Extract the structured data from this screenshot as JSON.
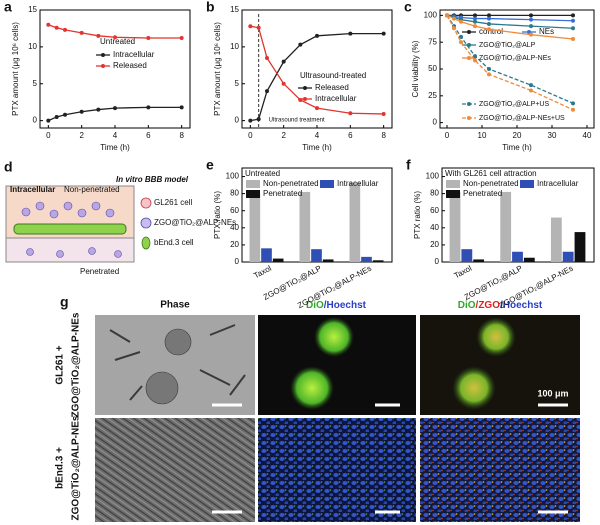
{
  "chart_data": [
    {
      "panel": "a",
      "type": "line",
      "title": "Untreated",
      "x_label": "Time (h)",
      "y_label": "PTX amount (μg 10⁶ cells)",
      "x": [
        0,
        0.5,
        1,
        2,
        3,
        4,
        6,
        8
      ],
      "xlim": [
        -0.5,
        8.5
      ],
      "xticks": [
        0,
        2,
        4,
        6,
        8
      ],
      "ylim": [
        -1,
        15
      ],
      "yticks": [
        0,
        5,
        10,
        15
      ],
      "series": [
        {
          "name": "Intracellular",
          "color": "#222222",
          "values": [
            0,
            0.5,
            0.8,
            1.2,
            1.5,
            1.7,
            1.8,
            1.8
          ]
        },
        {
          "name": "Released",
          "color": "#e3342f",
          "values": [
            13,
            12.6,
            12.3,
            11.9,
            11.5,
            11.3,
            11.2,
            11.2
          ]
        }
      ]
    },
    {
      "panel": "b",
      "type": "line",
      "title": "Ultrasound-treated",
      "x_label": "Time (h)",
      "y_label": "PTX amount (μg 10⁶ cells)",
      "x": [
        0,
        0.5,
        1,
        2,
        3,
        4,
        6,
        8
      ],
      "xlim": [
        -0.5,
        8.5
      ],
      "xticks": [
        0,
        2,
        4,
        6,
        8
      ],
      "ylim": [
        -1,
        15
      ],
      "yticks": [
        0,
        5,
        10,
        15
      ],
      "annotation": {
        "text": "Ultrasound treatment",
        "x": 0.5
      },
      "series": [
        {
          "name": "Released",
          "color": "#222222",
          "values": [
            0,
            0.2,
            4,
            8,
            10.3,
            11.5,
            11.8,
            11.8
          ]
        },
        {
          "name": "Intracellular",
          "color": "#e3342f",
          "values": [
            12.8,
            12.6,
            8.5,
            5,
            2.8,
            1.7,
            1,
            0.9
          ]
        }
      ]
    },
    {
      "panel": "c",
      "type": "line",
      "x_label": "Time (h)",
      "y_label": "Cell viability (%)",
      "x": [
        0,
        2,
        4,
        8,
        12,
        24,
        36
      ],
      "xlim": [
        -2,
        42
      ],
      "xticks": [
        0,
        10,
        20,
        30,
        40
      ],
      "ylim": [
        -5,
        105
      ],
      "yticks": [
        0,
        25,
        50,
        75,
        100
      ],
      "series": [
        {
          "name": "control",
          "color": "#222222",
          "values": [
            100,
            100,
            100,
            100,
            100,
            100,
            100
          ]
        },
        {
          "name": "NEs",
          "color": "#3a6fd8",
          "values": [
            100,
            99,
            98,
            97,
            97,
            96,
            95
          ]
        },
        {
          "name": "ZGO@TiO₂@ALP",
          "color": "#2b7a8c",
          "values": [
            100,
            98,
            96,
            94,
            92,
            90,
            88
          ]
        },
        {
          "name": "ZGO@TiO₂@ALP-NEs",
          "color": "#f08a3c",
          "values": [
            100,
            97,
            94,
            90,
            87,
            82,
            78
          ]
        },
        {
          "name": "ZGO@TiO₂@ALP+US",
          "color": "#2b7a8c",
          "dashed": true,
          "values": [
            100,
            90,
            80,
            62,
            50,
            35,
            18
          ]
        },
        {
          "name": "ZGO@TiO₂@ALP-NEs+US",
          "color": "#f08a3c",
          "dashed": true,
          "values": [
            100,
            88,
            75,
            58,
            45,
            30,
            12
          ]
        }
      ]
    },
    {
      "panel": "e",
      "type": "bar",
      "title": "Untreated",
      "y_label": "PTX ratio (%)",
      "categories": [
        "Taxol",
        "ZGO@TiO₂@ALP",
        "ZGO@TiO₂@ALP-NEs"
      ],
      "ylim": [
        0,
        110
      ],
      "yticks": [
        0,
        20,
        40,
        60,
        80,
        100
      ],
      "series": [
        {
          "name": "Non-penetrated",
          "color": "#b4b4b4",
          "values": [
            80,
            82,
            93
          ]
        },
        {
          "name": "Intracellular",
          "color": "#2f4fb5",
          "values": [
            16,
            15,
            6
          ]
        },
        {
          "name": "Penetrated",
          "color": "#111111",
          "values": [
            4,
            3,
            2
          ]
        }
      ]
    },
    {
      "panel": "f",
      "type": "bar",
      "title": "With GL261 cell attraction",
      "y_label": "PTX ratio (%)",
      "categories": [
        "Taxol",
        "ZGO@TiO₂@ALP",
        "ZGO@TiO₂@ALP-NEs"
      ],
      "ylim": [
        0,
        110
      ],
      "yticks": [
        0,
        20,
        40,
        60,
        80,
        100
      ],
      "series": [
        {
          "name": "Non-penetrated",
          "color": "#b4b4b4",
          "values": [
            82,
            82,
            52
          ]
        },
        {
          "name": "Intracellular",
          "color": "#2f4fb5",
          "values": [
            15,
            12,
            12
          ]
        },
        {
          "name": "Penetrated",
          "color": "#111111",
          "values": [
            3,
            5,
            35
          ]
        }
      ]
    }
  ],
  "diagram": {
    "panel": "d",
    "title": "In vitro BBB model",
    "intracellular": "Intracellular",
    "non_penetrated": "Non-penetrated",
    "penetrated": "Penetrated",
    "legend": [
      "GL261 cell",
      "ZGO@TiO₂@ALP-NEs",
      "bEnd.3 cell"
    ]
  },
  "micrographs": {
    "panel": "g",
    "columns": [
      "Phase",
      [
        "DiO",
        "/Hoechst"
      ],
      [
        "DiO",
        "/ZGO",
        "/Hoechst"
      ]
    ],
    "rows": [
      [
        "GL261 +",
        "ZGO@TiO₂@ALP-NEs"
      ],
      [
        "bEnd.3 +",
        "ZGO@TiO₂@ALP-NEs"
      ]
    ],
    "scale_bar": "100 μm"
  }
}
